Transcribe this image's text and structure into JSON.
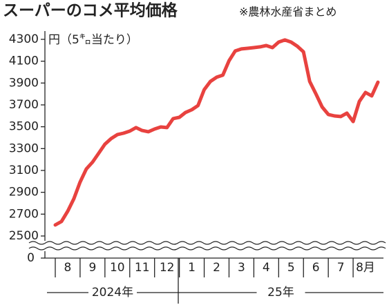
{
  "chart_data": {
    "type": "line",
    "title": "スーパーのコメ平均価格",
    "subtitle": "※農林水産省まとめ",
    "y_label": "円（5㌔当たり）",
    "months": [
      "8",
      "9",
      "10",
      "11",
      "12",
      "1",
      "2",
      "3",
      "4",
      "5",
      "6",
      "7",
      "8月"
    ],
    "years": [
      "2024年",
      "25年"
    ],
    "ylim": [
      2500,
      4300
    ],
    "yticks": [
      2500,
      2700,
      2900,
      3100,
      3300,
      3500,
      3700,
      3900,
      4100,
      4300
    ],
    "axis_origin": 0,
    "series": [
      {
        "color": "#e8423f",
        "values": [
          2601,
          2633,
          2727,
          2841,
          2993,
          3113,
          3176,
          3258,
          3340,
          3391,
          3428,
          3441,
          3460,
          3492,
          3466,
          3454,
          3479,
          3498,
          3492,
          3574,
          3586,
          3631,
          3656,
          3694,
          3839,
          3915,
          3953,
          3972,
          4104,
          4193,
          4212,
          4218,
          4224,
          4231,
          4243,
          4224,
          4275,
          4294,
          4275,
          4237,
          4186,
          3915,
          3801,
          3681,
          3612,
          3599,
          3593,
          3624,
          3548,
          3732,
          3814,
          3782,
          3908
        ]
      }
    ]
  }
}
